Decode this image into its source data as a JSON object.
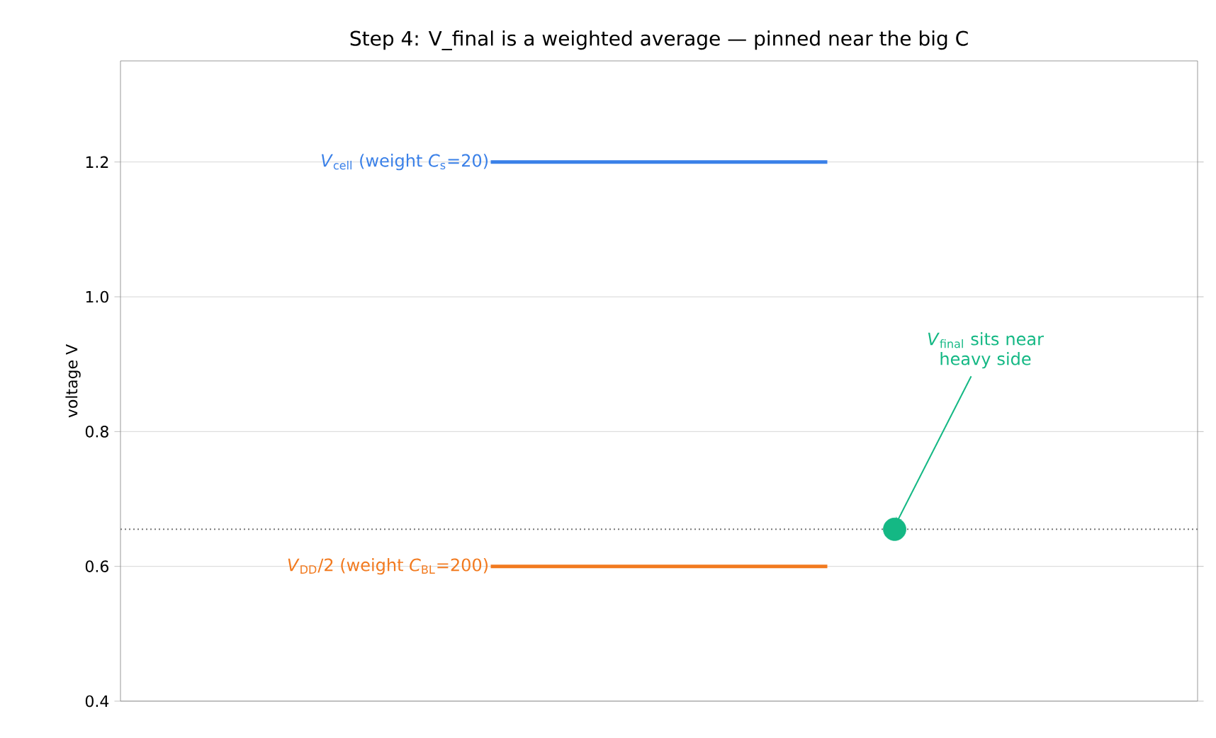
{
  "chart_data": {
    "type": "line",
    "title": "Step 4: V_final is a weighted average — pinned near the big C",
    "ylabel": "voltage  V",
    "categories": [
      null,
      null,
      null,
      null,
      null,
      null,
      null,
      null,
      null,
      null,
      null,
      null,
      null,
      null,
      null,
      null
    ],
    "ylim": [
      0.4,
      1.35
    ],
    "yticks": [
      0.4,
      0.6,
      0.8,
      {
        "value": 1.0,
        "label": "1.0"
      },
      1.2
    ],
    "grid": "y",
    "tick_labels": "y",
    "series": [
      {
        "name": "*V*$_{cell}$ (weight *C*$_{s}$=20)",
        "color": "#3a80e8",
        "values": [
          null,
          null,
          null,
          null,
          null,
          1.2,
          1.2,
          1.2,
          1.2,
          1.2,
          1.2,
          null,
          null,
          null,
          null,
          null
        ]
      },
      {
        "name": "*V*$_{DD}$/2 (weight *C*$_{BL}$=200)",
        "color": "#f27a1f",
        "values": [
          null,
          null,
          null,
          null,
          null,
          0.6,
          0.6,
          0.6,
          0.6,
          0.6,
          0.6,
          null,
          null,
          null,
          null,
          null
        ]
      },
      {
        "color": "#14b884",
        "type": "scatter",
        "marker": "circle",
        "values": [
          null,
          null,
          null,
          null,
          null,
          null,
          null,
          null,
          null,
          null,
          null,
          0.655,
          null,
          null,
          null,
          null
        ]
      }
    ],
    "ref_lines": [
      {
        "axis": "y",
        "value": 0.655,
        "color": "#777777",
        "line_style": "dotted"
      }
    ],
    "annotations": [
      "*V*$_{final}$ sits near heavy side"
    ]
  }
}
